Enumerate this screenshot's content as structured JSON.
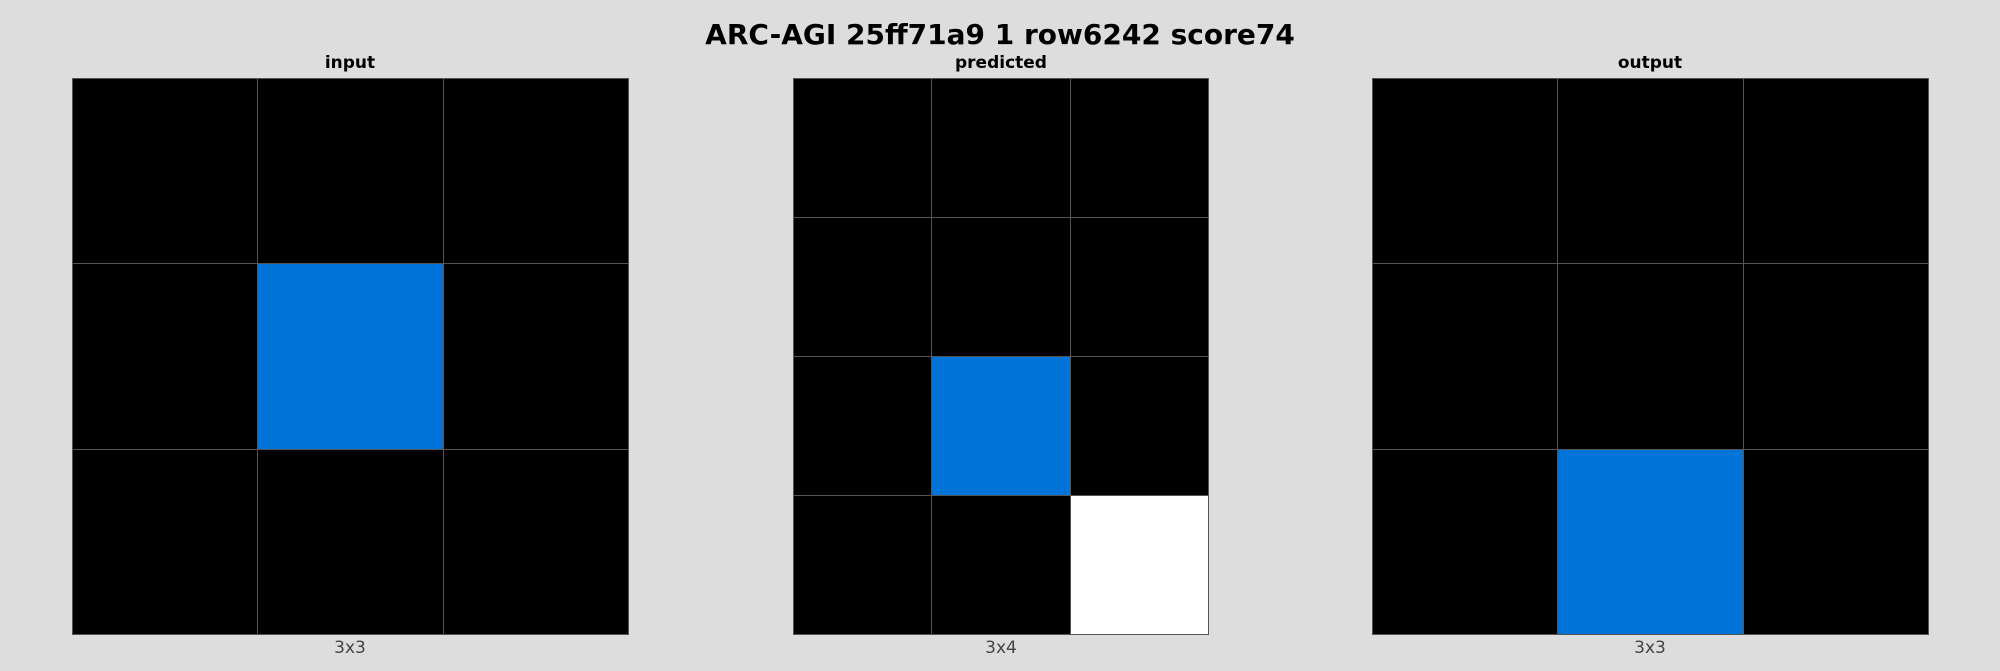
{
  "title": "ARC-AGI 25ff71a9 1 row6242 score74",
  "palette": {
    "0": "#000000",
    "1": "#0074D9",
    "5": "#FFFFFF"
  },
  "panels": [
    {
      "id": "input",
      "title": "input",
      "caption": "3x3",
      "rows": 3,
      "cols": 3,
      "grid": [
        [
          0,
          0,
          0
        ],
        [
          0,
          1,
          0
        ],
        [
          0,
          0,
          0
        ]
      ]
    },
    {
      "id": "predicted",
      "title": "predicted",
      "caption": "3x4",
      "rows": 4,
      "cols": 3,
      "grid": [
        [
          0,
          0,
          0
        ],
        [
          0,
          0,
          0
        ],
        [
          0,
          1,
          0
        ],
        [
          0,
          0,
          5
        ]
      ]
    },
    {
      "id": "output",
      "title": "output",
      "caption": "3x3",
      "rows": 3,
      "cols": 3,
      "grid": [
        [
          0,
          0,
          0
        ],
        [
          0,
          0,
          0
        ],
        [
          0,
          1,
          0
        ]
      ]
    }
  ]
}
